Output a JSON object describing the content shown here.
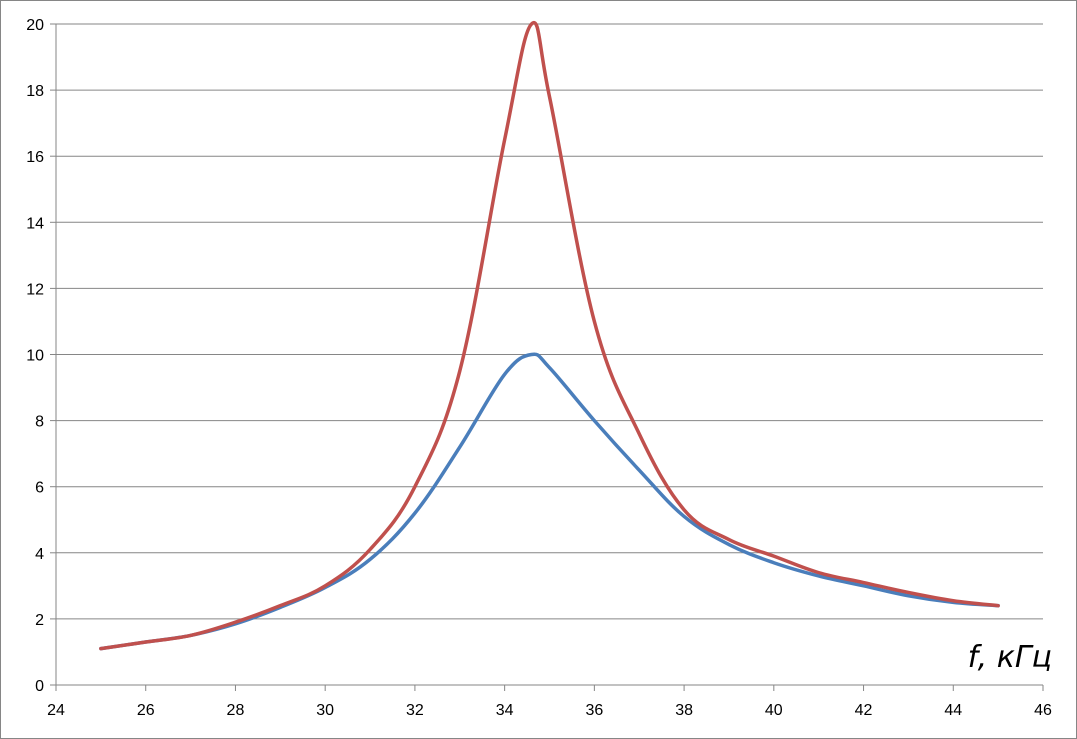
{
  "chart_data": {
    "type": "line",
    "title": "",
    "xlabel": "f, кГц",
    "ylabel": "",
    "xlim": [
      24,
      46
    ],
    "ylim": [
      0,
      20
    ],
    "x_ticks": [
      24,
      26,
      28,
      30,
      32,
      34,
      36,
      38,
      40,
      42,
      44,
      46
    ],
    "y_ticks": [
      0,
      2,
      4,
      6,
      8,
      10,
      12,
      14,
      16,
      18,
      20
    ],
    "grid": "horizontal",
    "legend": "none",
    "series": [
      {
        "color": "#4a7ebb",
        "x": [
          25,
          26,
          27,
          28,
          29,
          30,
          31,
          32,
          33,
          34,
          34.6,
          35,
          36,
          37,
          38,
          39,
          40,
          41,
          42,
          43,
          44,
          45
        ],
        "y": [
          1.1,
          1.3,
          1.5,
          1.85,
          2.35,
          2.95,
          3.8,
          5.2,
          7.2,
          9.4,
          10.0,
          9.6,
          8.0,
          6.5,
          5.1,
          4.25,
          3.7,
          3.3,
          3.0,
          2.7,
          2.5,
          2.4
        ]
      },
      {
        "color": "#c0504d",
        "x": [
          25,
          26,
          27,
          28,
          29,
          30,
          31,
          32,
          33,
          34,
          34.6,
          35,
          36,
          37,
          38,
          39,
          40,
          41,
          42,
          43,
          44,
          45
        ],
        "y": [
          1.1,
          1.3,
          1.5,
          1.9,
          2.4,
          3.0,
          4.1,
          6.0,
          9.5,
          16.5,
          20.0,
          17.8,
          11.0,
          7.6,
          5.3,
          4.4,
          3.9,
          3.4,
          3.1,
          2.8,
          2.55,
          2.4
        ]
      }
    ]
  }
}
